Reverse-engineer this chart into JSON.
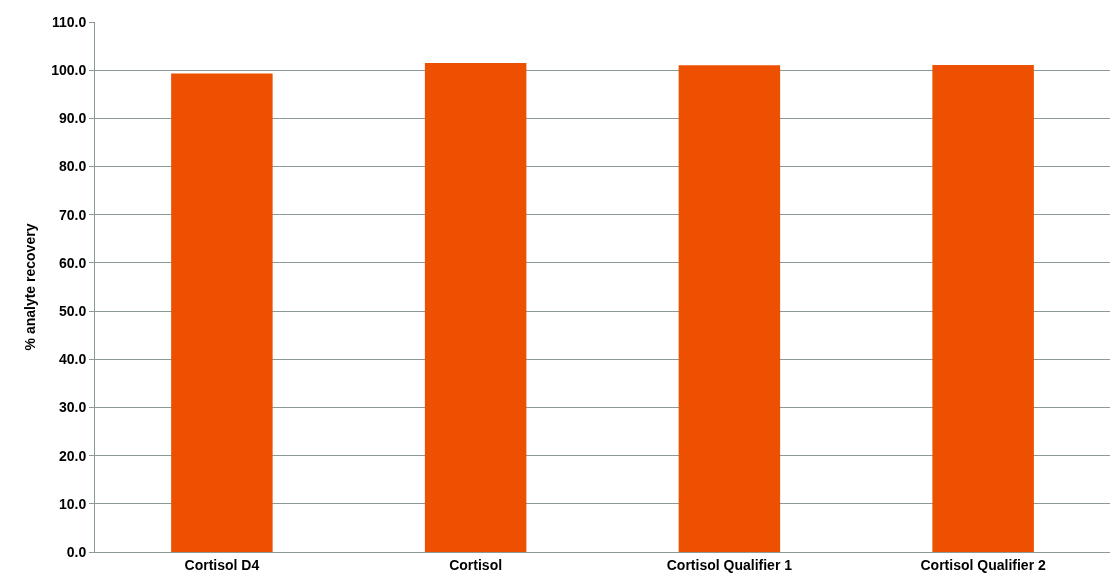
{
  "chart_data": {
    "type": "bar",
    "ylabel": "% analyte recovery",
    "categories": [
      "Cortisol D4",
      "Cortisol",
      "Cortisol Qualifier 1",
      "Cortisol Qualifier 2"
    ],
    "values": [
      99.3,
      101.5,
      101.0,
      101.1
    ],
    "color": "#ec5000",
    "ylim": [
      0,
      110
    ],
    "yticks": [
      {
        "value": 0,
        "label": "0.0"
      },
      {
        "value": 10,
        "label": "10.0"
      },
      {
        "value": 20,
        "label": "20.0"
      },
      {
        "value": 30,
        "label": "30.0"
      },
      {
        "value": 40,
        "label": "40.0"
      },
      {
        "value": 50,
        "label": "50.0"
      },
      {
        "value": 60,
        "label": "60.0"
      },
      {
        "value": 70,
        "label": "70.0"
      },
      {
        "value": 80,
        "label": "80.0"
      },
      {
        "value": 90,
        "label": "90.0"
      },
      {
        "value": 100,
        "label": "100.0"
      },
      {
        "value": 110,
        "label": "110.0"
      }
    ],
    "grid": "y"
  }
}
